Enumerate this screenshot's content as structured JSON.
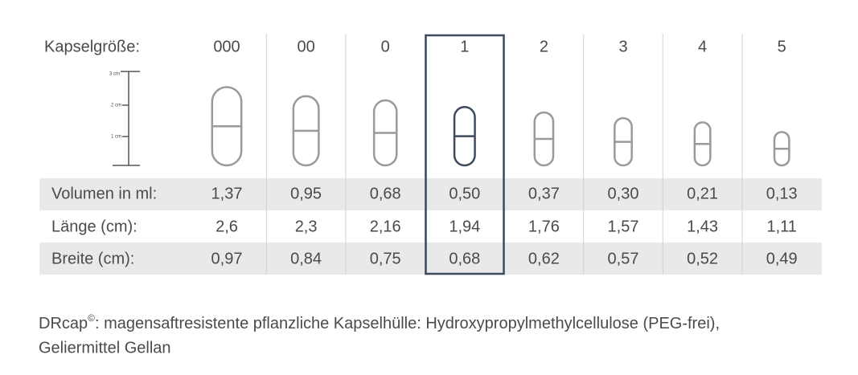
{
  "header": {
    "label": "Kapselgröße:",
    "sizes": [
      "000",
      "00",
      "0",
      "1",
      "2",
      "3",
      "4",
      "5"
    ]
  },
  "scale": {
    "labels": [
      "3 cm",
      "2 cm",
      "1 cm"
    ]
  },
  "table": {
    "rows": [
      {
        "label": "Volumen in ml:",
        "values": [
          "1,37",
          "0,95",
          "0,68",
          "0,50",
          "0,37",
          "0,30",
          "0,21",
          "0,13"
        ]
      },
      {
        "label": "Länge (cm):",
        "values": [
          "2,6",
          "2,3",
          "2,16",
          "1,94",
          "1,76",
          "1,57",
          "1,43",
          "1,11"
        ]
      },
      {
        "label": "Breite (cm):",
        "values": [
          "0,97",
          "0,84",
          "0,75",
          "0,68",
          "0,62",
          "0,57",
          "0,52",
          "0,49"
        ]
      }
    ]
  },
  "footer": {
    "brand": "DRcap",
    "mark": "©",
    "text": ": magensaftresistente pflanzliche Kapselhülle: Hydroxypropylmethylcellulose (PEG-frei),",
    "line2": "Geliermittel Gellan"
  }
}
